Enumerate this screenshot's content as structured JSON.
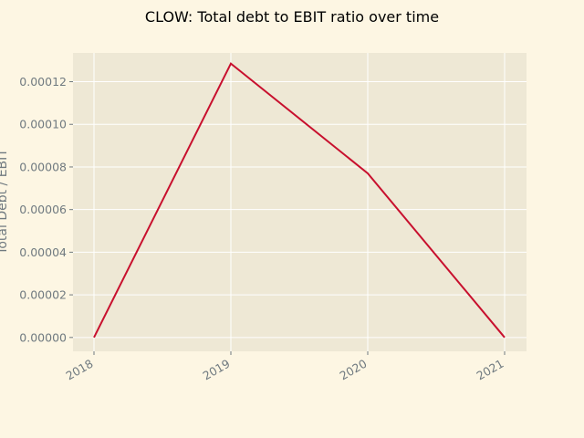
{
  "colors": {
    "figure_background": "#fdf6e3",
    "plot_background": "#eee8d5",
    "grid": "#ffffff",
    "line": "#c8102e",
    "tick_text": "#707a80"
  },
  "chart_data": {
    "type": "line",
    "title": "CLOW: Total debt to EBIT ratio over time",
    "xlabel": "",
    "ylabel": "Total Debt / EBIT",
    "categories": [
      "2018",
      "2019",
      "2020",
      "2021"
    ],
    "series": [
      {
        "values": [
          0.0,
          0.0001285,
          7.7e-05,
          0.0
        ]
      }
    ],
    "ylim": [
      -6.5e-06,
      0.0001335
    ],
    "yticks": [
      "0.00000",
      "0.00002",
      "0.00004",
      "0.00006",
      "0.00008",
      "0.00010",
      "0.00012"
    ],
    "grid": true,
    "legend": "none"
  }
}
